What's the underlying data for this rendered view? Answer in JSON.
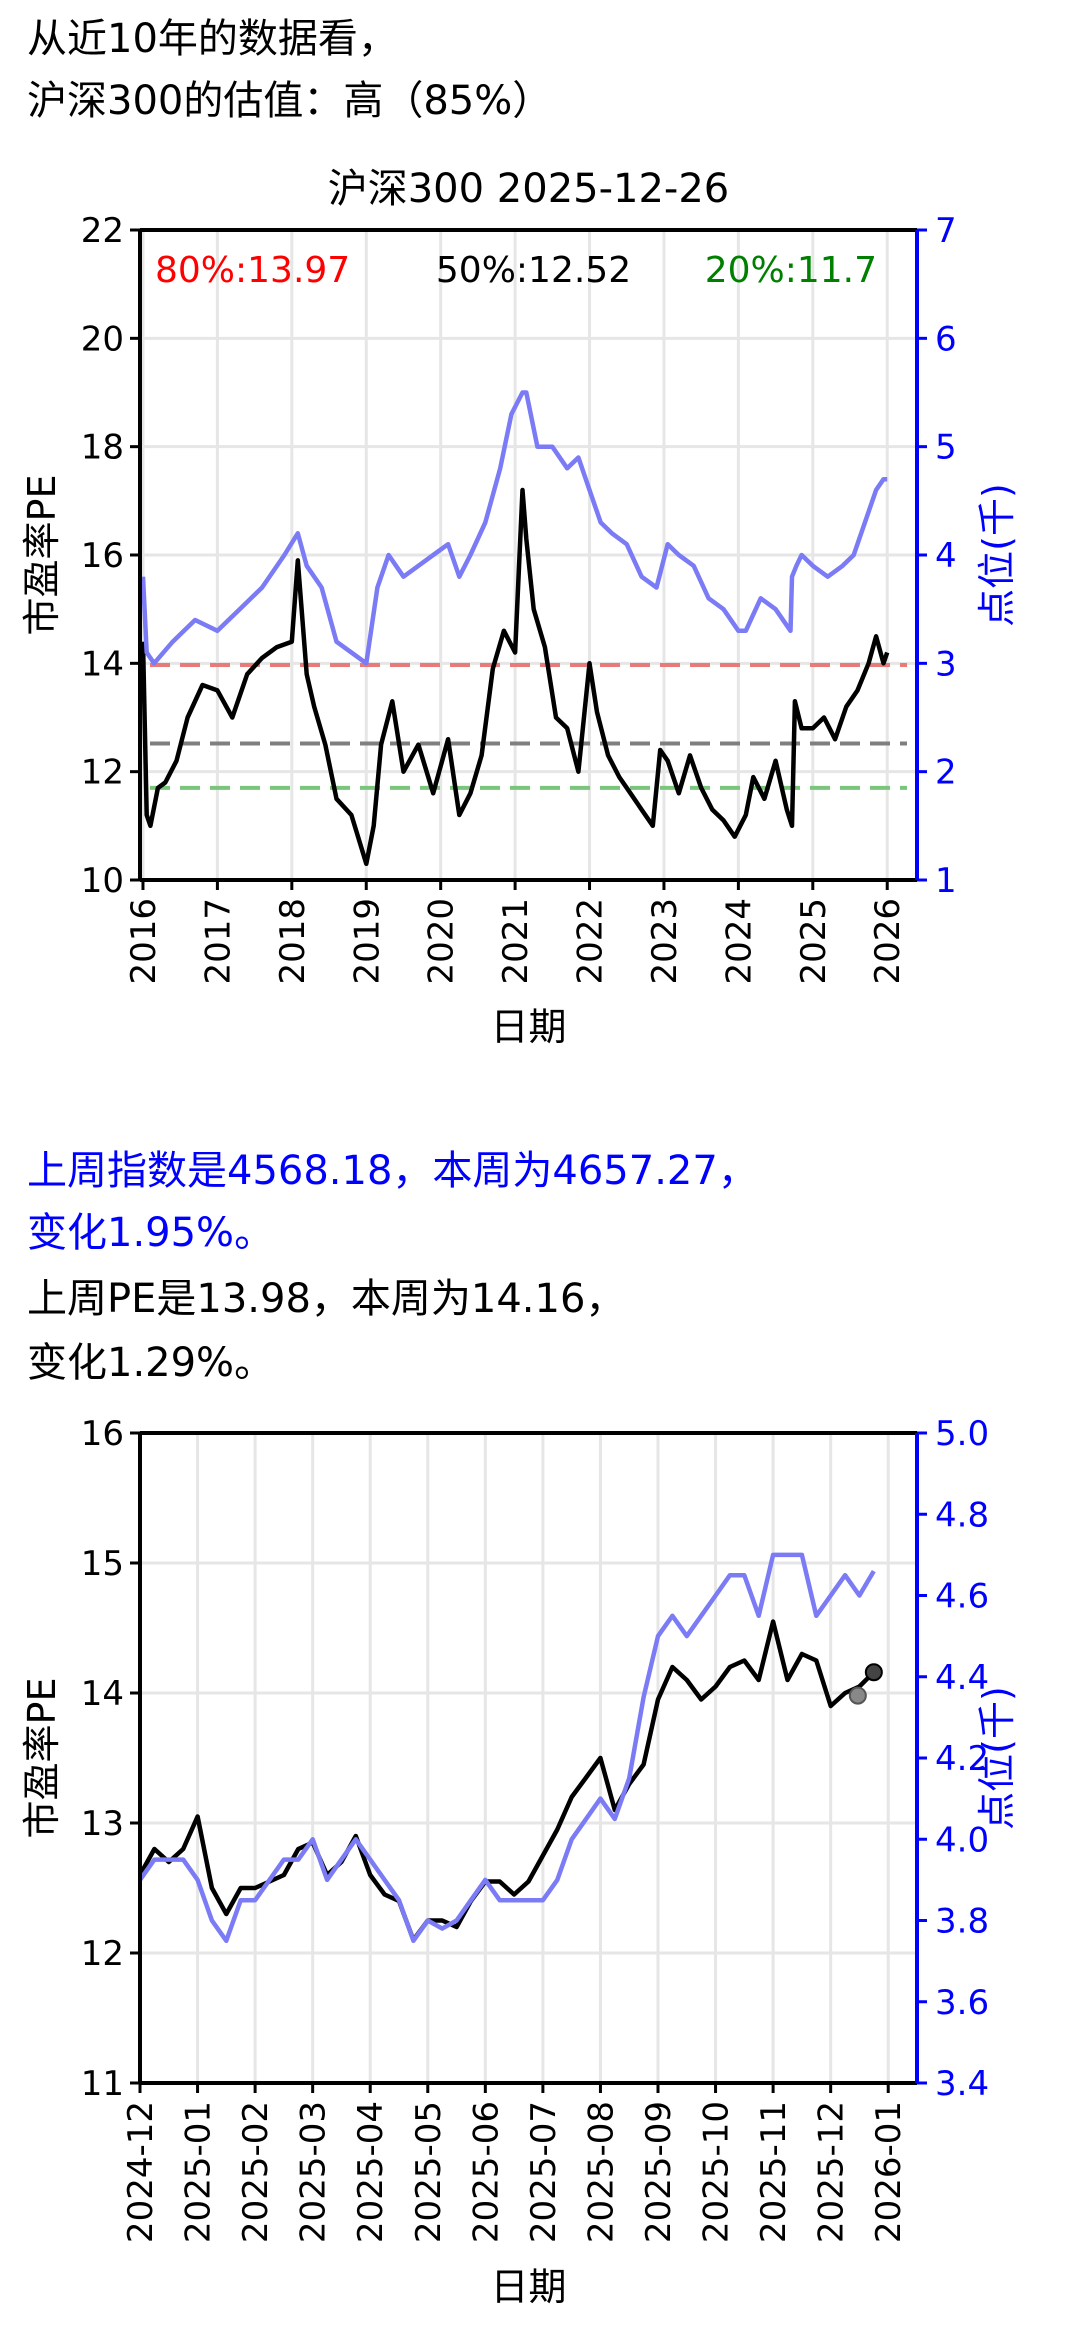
{
  "header": {
    "line1": "从近10年的数据看，",
    "line2": "沪深300的估值：高（85%）"
  },
  "summary": {
    "index_line1": "上周指数是4568.18，本周为4657.27，",
    "index_line2": "变化1.95%。",
    "pe_line1": "上周PE是13.98，本周为14.16，",
    "pe_line2": "变化1.29%。"
  },
  "colors": {
    "pe": "#000000",
    "index": "#7b7bf5",
    "p80": "#e87a7a",
    "p50": "#7f7f7f",
    "p20": "#7bc47b",
    "axis_right": "#0000ff"
  },
  "chart_data": [
    {
      "type": "line",
      "title": "沪深300 2025-12-26",
      "xlabel": "日期",
      "ylabel": "市盈率PE",
      "ylabel_right": "点位(千)",
      "ylim": [
        10,
        22
      ],
      "ylim_right": [
        1,
        7
      ],
      "yticks": [
        "10",
        "12",
        "14",
        "16",
        "18",
        "20",
        "22"
      ],
      "yticks_right": [
        "1",
        "2",
        "3",
        "4",
        "5",
        "6",
        "7"
      ],
      "xticks": [
        "2016",
        "2017",
        "2018",
        "2019",
        "2020",
        "2021",
        "2022",
        "2023",
        "2024",
        "2025",
        "2026"
      ],
      "grid": true,
      "percentile_labels": {
        "p80": "80%:13.97",
        "p50": "50%:12.52",
        "p20": "20%:11.7"
      },
      "percentiles": {
        "p80": 13.97,
        "p50": 12.52,
        "p20": 11.7
      },
      "series": [
        {
          "name": "PE",
          "axis": "left",
          "x": [
            2016.0,
            2016.05,
            2016.1,
            2016.2,
            2016.3,
            2016.45,
            2016.6,
            2016.8,
            2017.0,
            2017.2,
            2017.4,
            2017.6,
            2017.8,
            2018.0,
            2018.08,
            2018.2,
            2018.3,
            2018.45,
            2018.6,
            2018.8,
            2019.0,
            2019.1,
            2019.2,
            2019.35,
            2019.5,
            2019.7,
            2019.9,
            2020.1,
            2020.25,
            2020.4,
            2020.55,
            2020.7,
            2020.85,
            2021.0,
            2021.1,
            2021.15,
            2021.25,
            2021.4,
            2021.55,
            2021.7,
            2021.85,
            2022.0,
            2022.1,
            2022.25,
            2022.4,
            2022.55,
            2022.7,
            2022.85,
            2022.95,
            2023.05,
            2023.2,
            2023.35,
            2023.5,
            2023.65,
            2023.8,
            2023.95,
            2024.1,
            2024.2,
            2024.35,
            2024.5,
            2024.65,
            2024.72,
            2024.76,
            2024.85,
            2025.0,
            2025.15,
            2025.3,
            2025.45,
            2025.6,
            2025.75,
            2025.85,
            2025.95,
            2026.0
          ],
          "values": [
            14.4,
            11.2,
            11.0,
            11.7,
            11.8,
            12.2,
            13.0,
            13.6,
            13.5,
            13.0,
            13.8,
            14.1,
            14.3,
            14.4,
            15.9,
            13.8,
            13.2,
            12.5,
            11.5,
            11.2,
            10.3,
            11.0,
            12.5,
            13.3,
            12.0,
            12.5,
            11.6,
            12.6,
            11.2,
            11.6,
            12.3,
            13.9,
            14.6,
            14.2,
            17.2,
            16.3,
            15.0,
            14.3,
            13.0,
            12.8,
            12.0,
            14.0,
            13.1,
            12.3,
            11.9,
            11.6,
            11.3,
            11.0,
            12.4,
            12.2,
            11.6,
            12.3,
            11.7,
            11.3,
            11.1,
            10.8,
            11.2,
            11.9,
            11.5,
            12.2,
            11.3,
            11.0,
            13.3,
            12.8,
            12.8,
            13.0,
            12.6,
            13.2,
            13.5,
            14.0,
            14.5,
            14.0,
            14.2
          ]
        },
        {
          "name": "点位",
          "axis": "right",
          "x": [
            2016.0,
            2016.05,
            2016.15,
            2016.4,
            2016.7,
            2017.0,
            2017.3,
            2017.6,
            2017.9,
            2018.08,
            2018.2,
            2018.4,
            2018.6,
            2018.8,
            2019.0,
            2019.15,
            2019.3,
            2019.5,
            2019.7,
            2019.9,
            2020.1,
            2020.25,
            2020.4,
            2020.6,
            2020.8,
            2020.95,
            2021.1,
            2021.15,
            2021.3,
            2021.5,
            2021.7,
            2021.85,
            2022.0,
            2022.15,
            2022.3,
            2022.5,
            2022.7,
            2022.9,
            2023.05,
            2023.2,
            2023.4,
            2023.6,
            2023.8,
            2024.0,
            2024.1,
            2024.3,
            2024.5,
            2024.7,
            2024.72,
            2024.78,
            2024.85,
            2025.0,
            2025.2,
            2025.4,
            2025.55,
            2025.7,
            2025.85,
            2025.95,
            2026.0
          ],
          "values": [
            3.8,
            3.1,
            3.0,
            3.2,
            3.4,
            3.3,
            3.5,
            3.7,
            4.0,
            4.2,
            3.9,
            3.7,
            3.2,
            3.1,
            3.0,
            3.7,
            4.0,
            3.8,
            3.9,
            4.0,
            4.1,
            3.8,
            4.0,
            4.3,
            4.8,
            5.3,
            5.5,
            5.5,
            5.0,
            5.0,
            4.8,
            4.9,
            4.6,
            4.3,
            4.2,
            4.1,
            3.8,
            3.7,
            4.1,
            4.0,
            3.9,
            3.6,
            3.5,
            3.3,
            3.3,
            3.6,
            3.5,
            3.3,
            3.8,
            3.9,
            4.0,
            3.9,
            3.8,
            3.9,
            4.0,
            4.3,
            4.6,
            4.7,
            4.7
          ]
        }
      ]
    },
    {
      "type": "line",
      "title": "",
      "xlabel": "日期",
      "ylabel": "市盈率PE",
      "ylabel_right": "点位(千)",
      "ylim": [
        11,
        16
      ],
      "ylim_right": [
        3.4,
        5.0
      ],
      "yticks": [
        "11",
        "12",
        "13",
        "14",
        "15",
        "16"
      ],
      "yticks_right": [
        "3.4",
        "3.6",
        "3.8",
        "4.0",
        "4.2",
        "4.4",
        "4.6",
        "4.8",
        "5.0"
      ],
      "xticks": [
        "2024-12",
        "2025-01",
        "2025-02",
        "2025-03",
        "2025-04",
        "2025-05",
        "2025-06",
        "2025-07",
        "2025-08",
        "2025-09",
        "2025-10",
        "2025-11",
        "2025-12",
        "2026-01"
      ],
      "grid": true,
      "series": [
        {
          "name": "PE",
          "axis": "left",
          "x": [
            0.0,
            0.25,
            0.5,
            0.75,
            1.0,
            1.25,
            1.5,
            1.75,
            2.0,
            2.25,
            2.5,
            2.75,
            3.0,
            3.25,
            3.5,
            3.75,
            4.0,
            4.25,
            4.5,
            4.75,
            5.0,
            5.25,
            5.5,
            5.75,
            6.0,
            6.25,
            6.5,
            6.75,
            7.0,
            7.25,
            7.5,
            7.75,
            8.0,
            8.25,
            8.5,
            8.75,
            9.0,
            9.25,
            9.5,
            9.75,
            10.0,
            10.25,
            10.5,
            10.75,
            11.0,
            11.25,
            11.5,
            11.75,
            12.0,
            12.25,
            12.5,
            12.75
          ],
          "values": [
            12.6,
            12.8,
            12.7,
            12.8,
            13.05,
            12.5,
            12.3,
            12.5,
            12.5,
            12.55,
            12.6,
            12.8,
            12.85,
            12.6,
            12.7,
            12.9,
            12.6,
            12.45,
            12.4,
            12.1,
            12.25,
            12.25,
            12.2,
            12.4,
            12.55,
            12.55,
            12.45,
            12.55,
            12.75,
            12.95,
            13.2,
            13.35,
            13.5,
            13.1,
            13.3,
            13.45,
            13.95,
            14.2,
            14.1,
            13.95,
            14.05,
            14.2,
            14.25,
            14.1,
            14.55,
            14.1,
            14.3,
            14.25,
            13.9,
            14.0,
            14.05,
            14.16
          ],
          "endpoints": [
            13.98,
            14.16
          ]
        },
        {
          "name": "点位",
          "axis": "right",
          "x": [
            0.0,
            0.25,
            0.5,
            0.75,
            1.0,
            1.25,
            1.5,
            1.75,
            2.0,
            2.25,
            2.5,
            2.75,
            3.0,
            3.25,
            3.5,
            3.75,
            4.0,
            4.25,
            4.5,
            4.75,
            5.0,
            5.25,
            5.5,
            5.75,
            6.0,
            6.25,
            6.5,
            6.75,
            7.0,
            7.25,
            7.5,
            7.75,
            8.0,
            8.25,
            8.5,
            8.75,
            9.0,
            9.25,
            9.5,
            9.75,
            10.0,
            10.25,
            10.5,
            10.75,
            11.0,
            11.25,
            11.5,
            11.75,
            12.0,
            12.25,
            12.5,
            12.75
          ],
          "values": [
            3.9,
            3.95,
            3.95,
            3.95,
            3.9,
            3.8,
            3.75,
            3.85,
            3.85,
            3.9,
            3.95,
            3.95,
            4.0,
            3.9,
            3.95,
            4.0,
            3.95,
            3.9,
            3.85,
            3.75,
            3.8,
            3.78,
            3.8,
            3.85,
            3.9,
            3.85,
            3.85,
            3.85,
            3.85,
            3.9,
            4.0,
            4.05,
            4.1,
            4.05,
            4.15,
            4.35,
            4.5,
            4.55,
            4.5,
            4.55,
            4.6,
            4.65,
            4.65,
            4.55,
            4.7,
            4.7,
            4.7,
            4.55,
            4.6,
            4.65,
            4.6,
            4.66
          ],
          "endpoints": [
            4.568,
            4.657
          ]
        }
      ]
    }
  ]
}
